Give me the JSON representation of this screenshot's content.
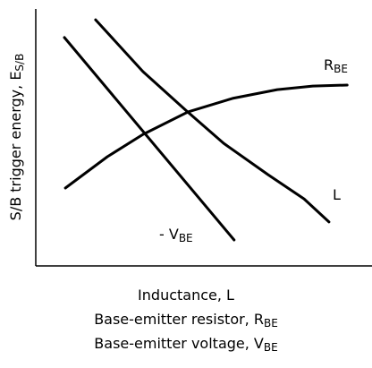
{
  "chart_data": {
    "type": "line",
    "ylabel": {
      "text": "S/B trigger energy, E",
      "sub": "S/B"
    },
    "xlabel": [
      {
        "text": "Inductance, L",
        "sub": null
      },
      {
        "text": "Base-emitter resistor, R",
        "sub": "BE"
      },
      {
        "text": "Base-emitter voltage, V",
        "sub": "BE"
      }
    ],
    "xlim": [
      0,
      100
    ],
    "ylim": [
      0,
      100
    ],
    "color": "#000000",
    "series": [
      {
        "label": {
          "text": "R",
          "sub": "BE"
        },
        "x": [
          8.8,
          21.3,
          31.9,
          45.2,
          58.5,
          71.8,
          82.4,
          92.6
        ],
        "values": [
          30.3,
          42.5,
          51.2,
          59.9,
          65.2,
          68.6,
          70.0,
          70.4
        ]
      },
      {
        "label": {
          "text": "L",
          "sub": null
        },
        "x": [
          17.8,
          31.9,
          45.2,
          55.9,
          69.1,
          79.8,
          87.2
        ],
        "values": [
          95.8,
          75.6,
          59.9,
          47.7,
          35.5,
          26.1,
          17.1
        ]
      },
      {
        "label": {
          "text": "- V",
          "sub": "BE"
        },
        "x": [
          8.5,
          59.0
        ],
        "values": [
          88.9,
          10.1
        ]
      }
    ]
  }
}
